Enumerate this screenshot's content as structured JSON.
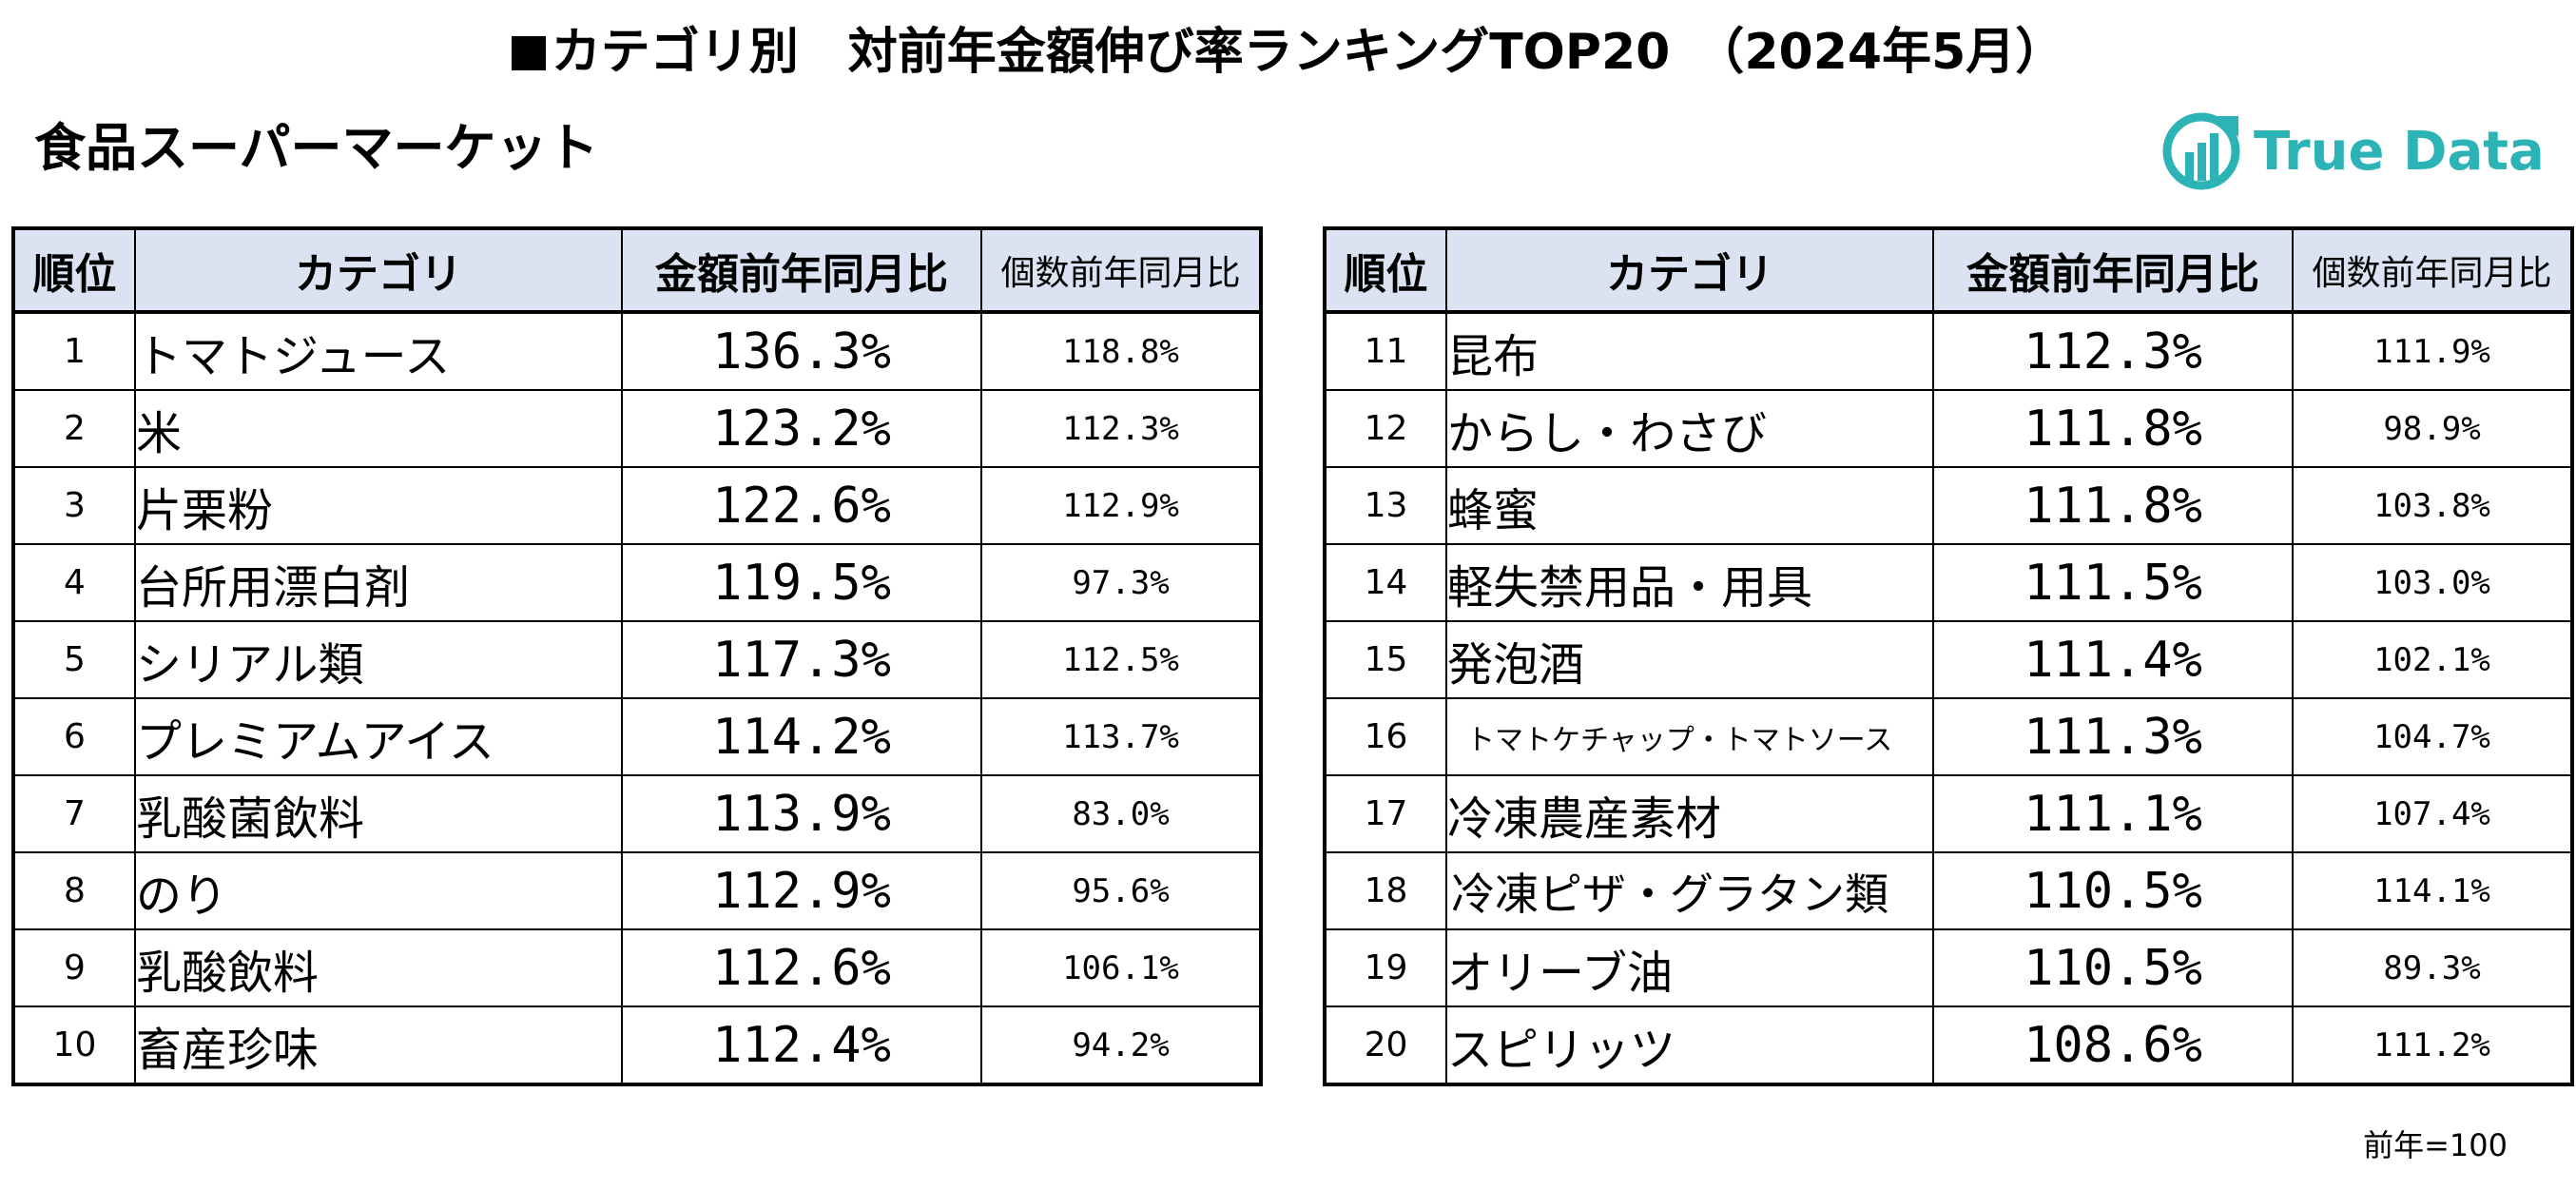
{
  "title": {
    "square": "■",
    "text": "カテゴリ別　対前年金額伸び率ランキングTOP20　（2024年5月）"
  },
  "subtitle": "食品スーパーマーケット",
  "logo": {
    "text": "True Data",
    "color": "#2bb3b5",
    "icon": "truedata-logo-icon"
  },
  "headers": {
    "rank": "順位",
    "category": "カテゴリ",
    "amount_yoy": "金額前年同月比",
    "count_yoy": "個数前年同月比"
  },
  "left_rows": [
    {
      "rank": "1",
      "category": "トマトジュース",
      "amount": "136.3%",
      "count": "118.8%"
    },
    {
      "rank": "2",
      "category": "米",
      "amount": "123.2%",
      "count": "112.3%"
    },
    {
      "rank": "3",
      "category": "片栗粉",
      "amount": "122.6%",
      "count": "112.9%"
    },
    {
      "rank": "4",
      "category": "台所用漂白剤",
      "amount": "119.5%",
      "count": "97.3%"
    },
    {
      "rank": "5",
      "category": "シリアル類",
      "amount": "117.3%",
      "count": "112.5%"
    },
    {
      "rank": "6",
      "category": "プレミアムアイス",
      "amount": "114.2%",
      "count": "113.7%"
    },
    {
      "rank": "7",
      "category": "乳酸菌飲料",
      "amount": "113.9%",
      "count": "83.0%"
    },
    {
      "rank": "8",
      "category": "のり",
      "amount": "112.9%",
      "count": "95.6%"
    },
    {
      "rank": "9",
      "category": "乳酸飲料",
      "amount": "112.6%",
      "count": "106.1%"
    },
    {
      "rank": "10",
      "category": "畜産珍味",
      "amount": "112.4%",
      "count": "94.2%"
    }
  ],
  "right_rows": [
    {
      "rank": "11",
      "category": "昆布",
      "amount": "112.3%",
      "count": "111.9%"
    },
    {
      "rank": "12",
      "category": "からし・わさび",
      "amount": "111.8%",
      "count": "98.9%"
    },
    {
      "rank": "13",
      "category": "蜂蜜",
      "amount": "111.8%",
      "count": "103.8%"
    },
    {
      "rank": "14",
      "category": "軽失禁用品・用具",
      "amount": "111.5%",
      "count": "103.0%"
    },
    {
      "rank": "15",
      "category": "発泡酒",
      "amount": "111.4%",
      "count": "102.1%"
    },
    {
      "rank": "16",
      "category": "トマトケチャップ・トマトソース",
      "amount": "111.3%",
      "count": "104.7%"
    },
    {
      "rank": "17",
      "category": "冷凍農産素材",
      "amount": "111.1%",
      "count": "107.4%"
    },
    {
      "rank": "18",
      "category": "冷凍ピザ・グラタン類",
      "amount": "110.5%",
      "count": "114.1%"
    },
    {
      "rank": "19",
      "category": "オリーブ油",
      "amount": "110.5%",
      "count": "89.3%"
    },
    {
      "rank": "20",
      "category": "スピリッツ",
      "amount": "108.6%",
      "count": "111.2%"
    }
  ],
  "note": "前年=100",
  "colors": {
    "header_bg": "#dbe3f3",
    "border": "#000000",
    "logo": "#2bb3b5"
  }
}
